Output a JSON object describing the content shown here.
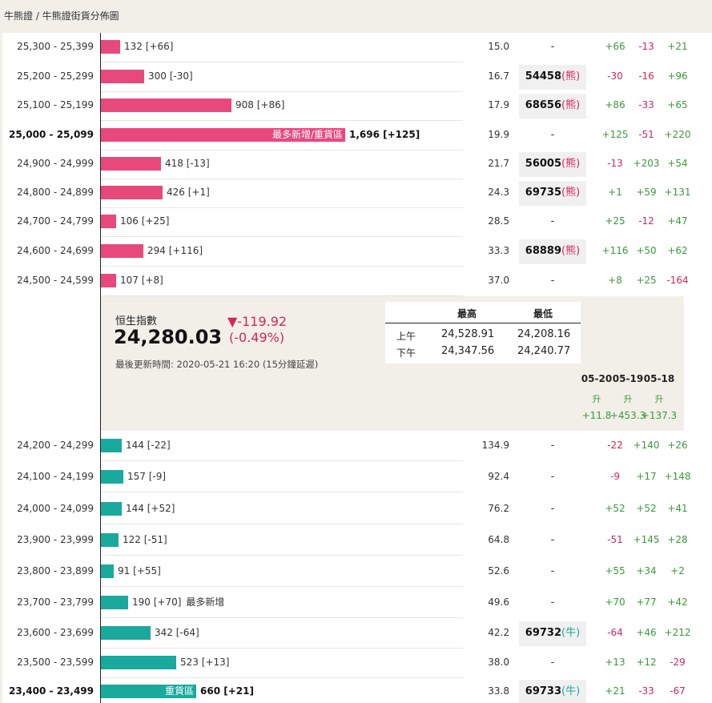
{
  "breadcrumb": "牛熊證 / 牛熊證街貨分佈圖",
  "colors": {
    "bear": "#e8497d",
    "bull": "#1aa99d",
    "positive": "#3a9a3a",
    "negative": "#d3265b"
  },
  "bear_rows": [
    {
      "range": "25,300 - 25,399",
      "count": "132 [+66]",
      "ratio": "15.0",
      "code": "-",
      "changes": [
        "+66",
        "-13",
        "+21"
      ]
    },
    {
      "range": "25,200 - 25,299",
      "count": "300 [-30]",
      "ratio": "16.7",
      "code": "54458",
      "code_kind": "(熊)",
      "changes": [
        "-30",
        "-16",
        "+96"
      ]
    },
    {
      "range": "25,100 - 25,199",
      "count": "908 [+86]",
      "ratio": "17.9",
      "code": "68656",
      "code_kind": "(熊)",
      "changes": [
        "+86",
        "-33",
        "+65"
      ]
    },
    {
      "range": "25,000 - 25,099",
      "count": "1,696 [+125]",
      "bar_label": "最多新增/重貨區",
      "ratio": "19.9",
      "code": "-",
      "changes": [
        "+125",
        "-51",
        "+220"
      ],
      "bold": true
    },
    {
      "range": "24,900 - 24,999",
      "count": "418 [-13]",
      "ratio": "21.7",
      "code": "56005",
      "code_kind": "(熊)",
      "changes": [
        "-13",
        "+203",
        "+54"
      ]
    },
    {
      "range": "24,800 - 24,899",
      "count": "426 [+1]",
      "ratio": "24.3",
      "code": "69735",
      "code_kind": "(熊)",
      "changes": [
        "+1",
        "+59",
        "+131"
      ]
    },
    {
      "range": "24,700 - 24,799",
      "count": "106 [+25]",
      "ratio": "28.5",
      "code": "-",
      "changes": [
        "+25",
        "-12",
        "+47"
      ]
    },
    {
      "range": "24,600 - 24,699",
      "count": "294 [+116]",
      "ratio": "33.3",
      "code": "68889",
      "code_kind": "(熊)",
      "changes": [
        "+116",
        "+50",
        "+62"
      ]
    },
    {
      "range": "24,500 - 24,599",
      "count": "107 [+8]",
      "ratio": "37.0",
      "code": "-",
      "changes": [
        "+8",
        "+25",
        "-164"
      ]
    }
  ],
  "index": {
    "name": "恒生指數",
    "value": "24,280.03",
    "change": "▼-119.92",
    "change_pct": "(-0.49%)",
    "updated": "最後更新時間: 2020-05-21 16:20 (15分鐘延遲)",
    "table": {
      "head_high": "最高",
      "head_low": "最低",
      "rows": [
        {
          "label": "上午",
          "high": "24,528.91",
          "low": "24,208.16"
        },
        {
          "label": "下午",
          "high": "24,347.56",
          "low": "24,240.77"
        }
      ]
    },
    "dates": [
      "05-20",
      "05-19",
      "05-18"
    ],
    "signals": [
      "升",
      "升",
      "升"
    ],
    "totals": [
      "+11.8",
      "+453.3",
      "+137.3"
    ]
  },
  "bull_rows": [
    {
      "range": "24,200 - 24,299",
      "count": "144 [-22]",
      "ratio": "134.9",
      "code": "-",
      "changes": [
        "-22",
        "+140",
        "+26"
      ]
    },
    {
      "range": "24,100 - 24,199",
      "count": "157 [-9]",
      "ratio": "92.4",
      "code": "-",
      "changes": [
        "-9",
        "+17",
        "+148"
      ]
    },
    {
      "range": "24,000 - 24,099",
      "count": "144 [+52]",
      "ratio": "76.2",
      "code": "-",
      "changes": [
        "+52",
        "+52",
        "+41"
      ]
    },
    {
      "range": "23,900 - 23,999",
      "count": "122 [-51]",
      "ratio": "64.8",
      "code": "-",
      "changes": [
        "-51",
        "+145",
        "+28"
      ]
    },
    {
      "range": "23,800 - 23,899",
      "count": "91 [+55]",
      "ratio": "52.6",
      "code": "-",
      "changes": [
        "+55",
        "+34",
        "+2"
      ]
    },
    {
      "range": "23,700 - 23,799",
      "count": "190 [+70]",
      "note": "最多新增",
      "ratio": "49.6",
      "code": "-",
      "changes": [
        "+70",
        "+77",
        "+42"
      ]
    },
    {
      "range": "23,600 - 23,699",
      "count": "342 [-64]",
      "ratio": "42.2",
      "code": "69732",
      "code_kind": "(牛)",
      "changes": [
        "-64",
        "+46",
        "+212"
      ]
    },
    {
      "range": "23,500 - 23,599",
      "count": "523 [+13]",
      "ratio": "38.0",
      "code": "-",
      "changes": [
        "+13",
        "+12",
        "-29"
      ]
    },
    {
      "range": "23,400 - 23,499",
      "count": "660 [+21]",
      "bar_label": "重貨區",
      "ratio": "33.8",
      "code": "69733",
      "code_kind": "(牛)",
      "changes": [
        "+21",
        "-33",
        "-67"
      ],
      "bold": true
    }
  ]
}
